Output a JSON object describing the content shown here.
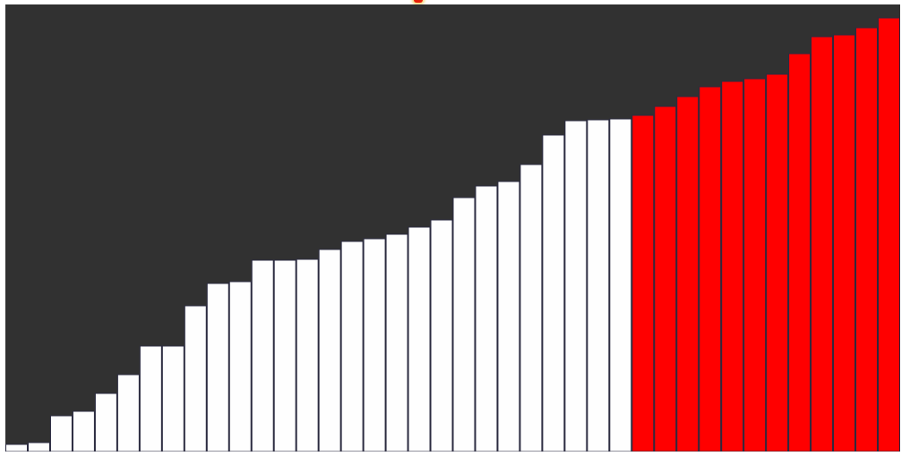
{
  "app": {
    "background_color": "#313131",
    "marker_icon": "indicator-dot-icon",
    "marker_color": "#e8200a"
  },
  "chart_data": {
    "type": "bar",
    "ylim": [
      0,
      100
    ],
    "grid": false,
    "legend": "none",
    "colors": {
      "unsorted": "#fefefe",
      "sorted": "#ff0000",
      "stroke": "#2a2a40"
    },
    "values": [
      1.6,
      2.0,
      8.0,
      9.0,
      13.0,
      17.2,
      23.6,
      23.6,
      32.6,
      37.6,
      38.0,
      42.8,
      42.8,
      43.0,
      45.2,
      47.0,
      47.6,
      48.6,
      50.2,
      51.8,
      56.8,
      59.4,
      60.4,
      64.2,
      70.8,
      74.0,
      74.2,
      74.4,
      75.2,
      77.2,
      79.4,
      81.6,
      82.8,
      83.4,
      84.4,
      89.0,
      92.8,
      93.2,
      94.8,
      97.0
    ],
    "sorted_from_index": 28
  }
}
